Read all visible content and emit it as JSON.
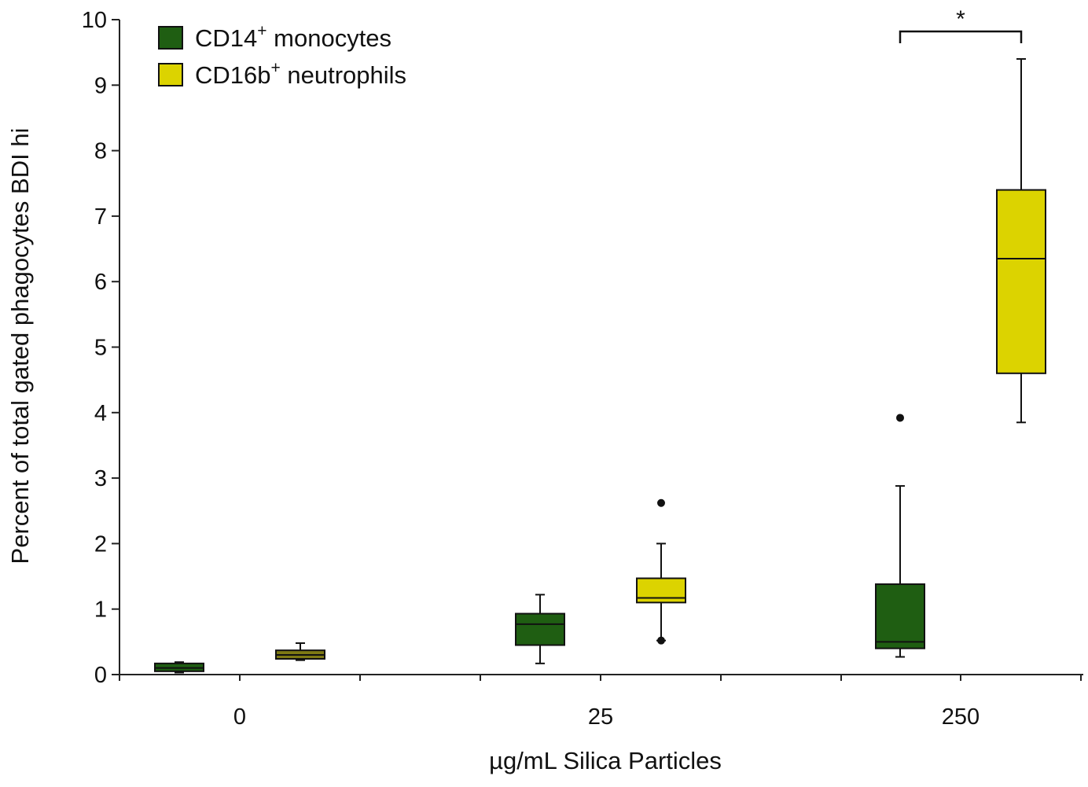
{
  "chart_data": {
    "type": "boxplot",
    "xlabel": "µg/mL Silica Particles",
    "ylabel": "Percent of total gated phagocytes BDI hi",
    "ylim": [
      0,
      10
    ],
    "yticks": [
      "0",
      "1",
      "2",
      "3",
      "4",
      "5",
      "6",
      "7",
      "8",
      "9",
      "10"
    ],
    "categories": [
      "0",
      "25",
      "250"
    ],
    "legend": {
      "placement": "top-left",
      "entries": [
        {
          "label": "CD14",
          "sup": "+",
          "suffix": " monocytes"
        },
        {
          "label": "CD16b",
          "sup": "+",
          "suffix": " neutrophils"
        }
      ]
    },
    "series": [
      {
        "name": "CD14+ monocytes",
        "color": "#1f5e12",
        "boxes": [
          {
            "category": "0",
            "whisker_low": 0.03,
            "q1": 0.05,
            "median": 0.1,
            "q3": 0.17,
            "whisker_high": 0.19,
            "outliers": []
          },
          {
            "category": "25",
            "whisker_low": 0.17,
            "q1": 0.45,
            "median": 0.77,
            "q3": 0.93,
            "whisker_high": 1.22,
            "outliers": []
          },
          {
            "category": "250",
            "whisker_low": 0.27,
            "q1": 0.4,
            "median": 0.5,
            "q3": 1.38,
            "whisker_high": 2.88,
            "outliers": [
              3.92
            ]
          }
        ]
      },
      {
        "name": "CD16b+ neutrophils",
        "color": "#dcd300",
        "boxes": [
          {
            "category": "0",
            "whisker_low": 0.22,
            "q1": 0.24,
            "median": 0.3,
            "q3": 0.37,
            "whisker_high": 0.48,
            "outliers": [],
            "fill_override": "#7e7a14"
          },
          {
            "category": "25",
            "whisker_low": 0.52,
            "q1": 1.1,
            "median": 1.17,
            "q3": 1.47,
            "whisker_high": 2.0,
            "outliers": [
              2.62,
              0.52
            ]
          },
          {
            "category": "250",
            "whisker_low": 3.85,
            "q1": 4.6,
            "median": 6.35,
            "q3": 7.4,
            "whisker_high": 9.4,
            "outliers": []
          }
        ]
      }
    ],
    "significance": [
      {
        "category": "250",
        "label": "*"
      }
    ]
  }
}
